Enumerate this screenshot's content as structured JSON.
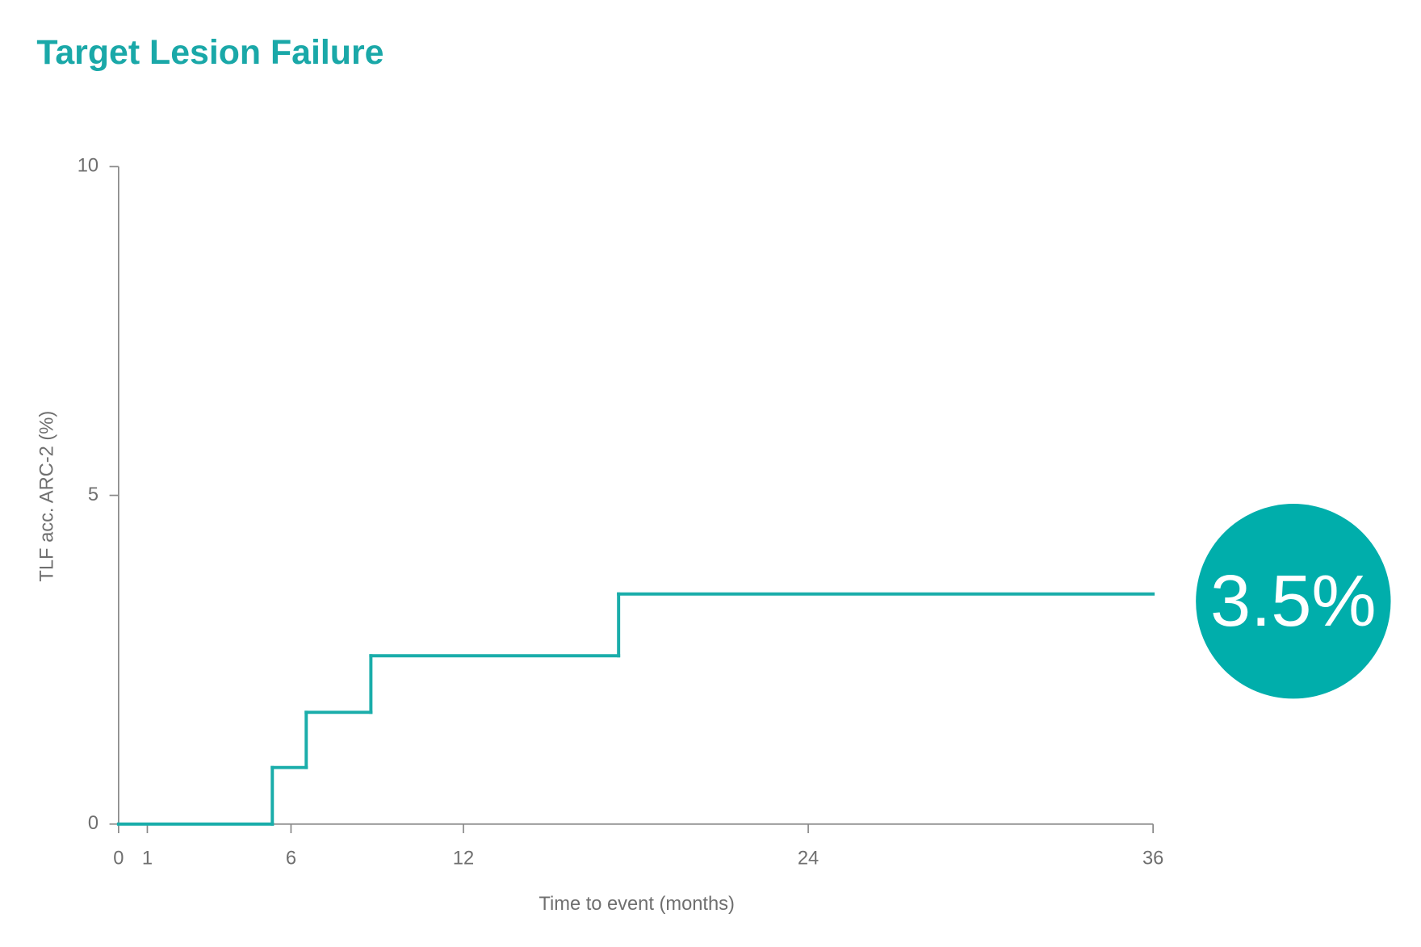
{
  "chart_data": {
    "type": "step",
    "title": "Target Lesion Failure",
    "x_label": "Time to event (months)",
    "y_label": "TLF acc. ARC-2 (%)",
    "x": [
      0,
      5.35,
      6.53,
      8.78,
      17.4
    ],
    "values": [
      0,
      0.86,
      1.7,
      2.56,
      3.5
    ],
    "color": "#1aadaa",
    "xlim": [
      0,
      36
    ],
    "ylim": [
      0,
      10
    ],
    "xticks": [
      0,
      1,
      6,
      12,
      24,
      36
    ],
    "yticks": [
      0,
      5,
      10
    ],
    "annotation": {
      "value": 3.5,
      "label": "3.5%",
      "color": "#00aeab"
    }
  }
}
